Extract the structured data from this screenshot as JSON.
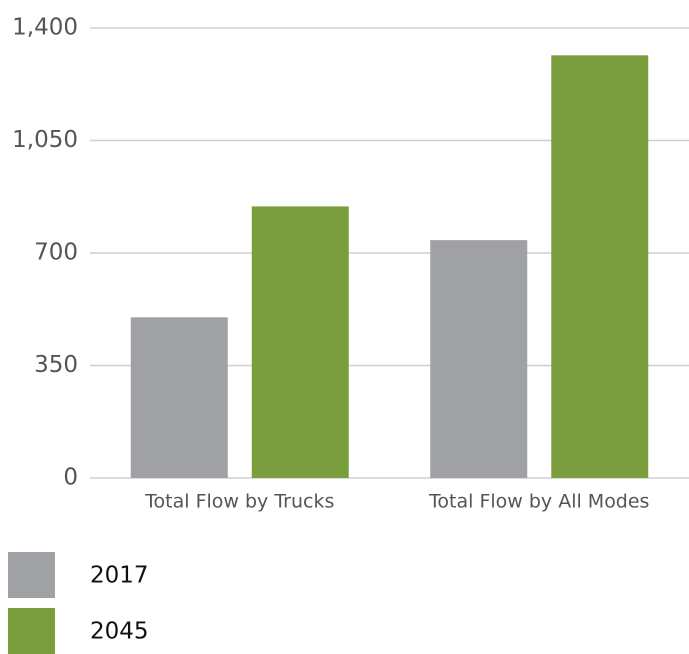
{
  "chart_data": {
    "type": "bar",
    "categories": [
      "Total Flow by Trucks",
      "Total Flow by All Modes"
    ],
    "series": [
      {
        "name": "2017",
        "color": "#a0a1a5",
        "values": [
          500,
          740
        ]
      },
      {
        "name": "2045",
        "color": "#7a9e3e",
        "values": [
          845,
          1315
        ]
      }
    ],
    "ylim": [
      0,
      1400
    ],
    "yticks": [
      0,
      350,
      700,
      {
        "value": 1050,
        "label": "1,050"
      },
      {
        "value": 1400,
        "label": "1,400"
      }
    ],
    "grid": true
  }
}
